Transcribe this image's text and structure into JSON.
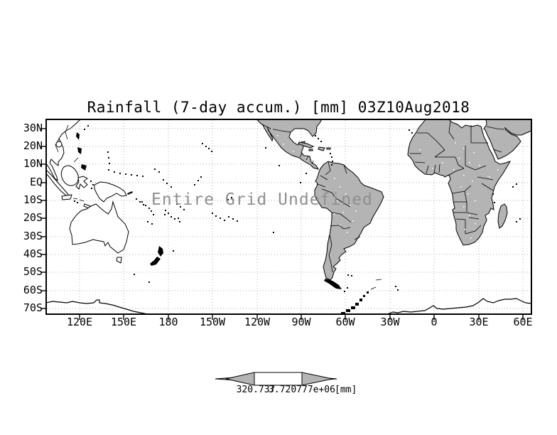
{
  "title": "Rainfall (7-day accum.) [mm] 03Z10Aug2018",
  "plot": {
    "overlay_message": "Entire Grid Undefined",
    "y_axis_labels": [
      "30N",
      "20N",
      "10N",
      "EQ",
      "10S",
      "20S",
      "30S",
      "40S",
      "50S",
      "60S",
      "70S"
    ],
    "x_axis_labels": [
      "120E",
      "150E",
      "180",
      "150W",
      "120W",
      "90W",
      "60W",
      "30W",
      "0",
      "30E",
      "60E"
    ]
  },
  "colorbar": {
    "tick_labels": [
      "320.737",
      "3.720777e+06"
    ],
    "units": "[mm]"
  },
  "colors": {
    "land_fill": "#b4b4b4",
    "coastline": "#000000",
    "grid_dots": "#b0b0b0",
    "message_text": "#8f8f8f",
    "background": "#ffffff"
  }
}
